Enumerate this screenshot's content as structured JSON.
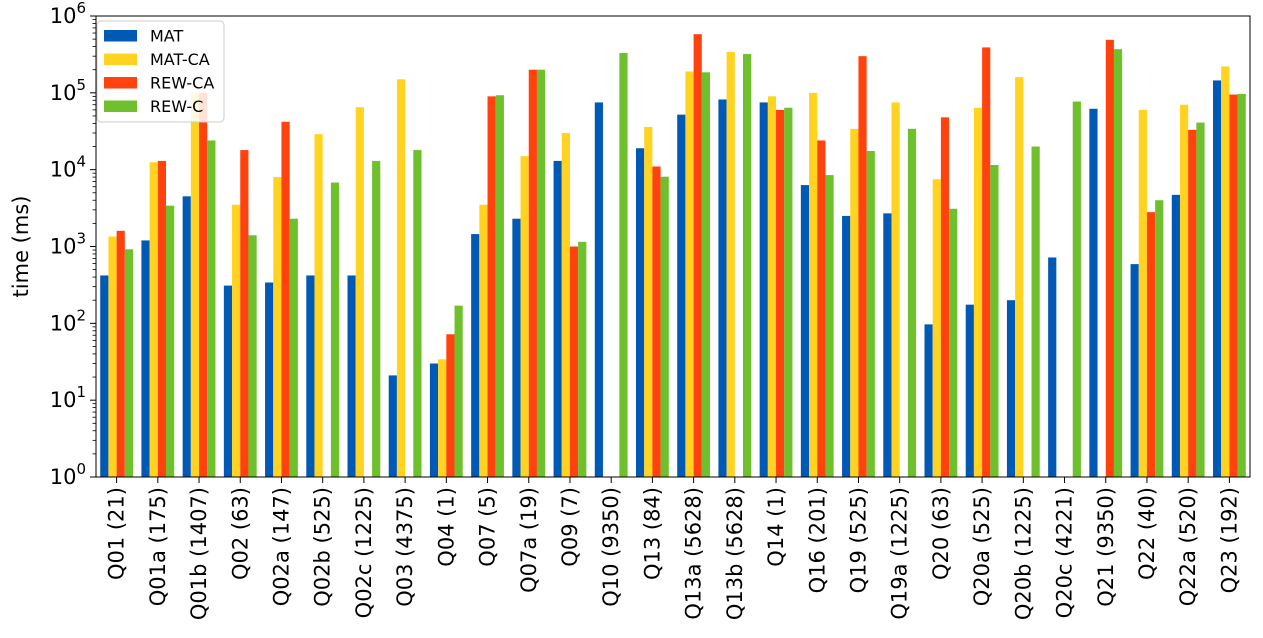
{
  "chart_data": {
    "type": "bar",
    "ylabel": "time (ms)",
    "yscale": "log",
    "ylim": [
      1,
      1000000
    ],
    "legend_position": "top-left",
    "grid": false,
    "y_ticks": [
      {
        "value": 1,
        "base": "10",
        "exp": "0"
      },
      {
        "value": 10,
        "base": "10",
        "exp": "1"
      },
      {
        "value": 100,
        "base": "10",
        "exp": "2"
      },
      {
        "value": 1000,
        "base": "10",
        "exp": "3"
      },
      {
        "value": 10000,
        "base": "10",
        "exp": "4"
      },
      {
        "value": 100000,
        "base": "10",
        "exp": "5"
      },
      {
        "value": 1000000,
        "base": "10",
        "exp": "6"
      }
    ],
    "categories": [
      "Q01 (21)",
      "Q01a (175)",
      "Q01b (1407)",
      "Q02 (63)",
      "Q02a (147)",
      "Q02b (525)",
      "Q02c (1225)",
      "Q03 (4375)",
      "Q04 (1)",
      "Q07 (5)",
      "Q07a (19)",
      "Q09 (7)",
      "Q10 (9350)",
      "Q13 (84)",
      "Q13a (5628)",
      "Q13b (5628)",
      "Q14 (1)",
      "Q16 (201)",
      "Q19 (525)",
      "Q19a (1225)",
      "Q20 (63)",
      "Q20a (525)",
      "Q20b (1225)",
      "Q20c (4221)",
      "Q21 (9350)",
      "Q22 (40)",
      "Q22a (520)",
      "Q23 (192)"
    ],
    "series": [
      {
        "name": "MAT",
        "color": "#005AB5",
        "values": [
          420,
          1200,
          4500,
          310,
          340,
          420,
          420,
          21,
          30,
          1450,
          2300,
          13000,
          75000,
          19000,
          52000,
          82000,
          75000,
          6300,
          2500,
          2700,
          97,
          175,
          200,
          720,
          62000,
          590,
          4700,
          145000
        ]
      },
      {
        "name": "MAT-CA",
        "color": "#FFD320",
        "values": [
          1350,
          12500,
          100000,
          3500,
          8000,
          29000,
          65000,
          150000,
          34,
          3500,
          15000,
          30000,
          null,
          36000,
          190000,
          340000,
          90000,
          100000,
          34000,
          75000,
          7500,
          64000,
          160000,
          null,
          null,
          60000,
          70000,
          220000
        ]
      },
      {
        "name": "REW-CA",
        "color": "#FF420E",
        "values": [
          1600,
          13000,
          100000,
          18000,
          42000,
          null,
          null,
          null,
          72,
          90000,
          200000,
          1000,
          null,
          11000,
          580000,
          null,
          60000,
          24000,
          300000,
          null,
          48000,
          390000,
          null,
          null,
          490000,
          2800,
          33000,
          95000
        ]
      },
      {
        "name": "REW-C",
        "color": "#6EC02C",
        "values": [
          920,
          3400,
          24000,
          1400,
          2300,
          6800,
          13000,
          18000,
          170,
          93000,
          200000,
          1150,
          330000,
          8100,
          185000,
          320000,
          64000,
          8500,
          17500,
          34000,
          3100,
          11500,
          20000,
          77000,
          370000,
          4000,
          41000,
          97000
        ]
      }
    ]
  }
}
